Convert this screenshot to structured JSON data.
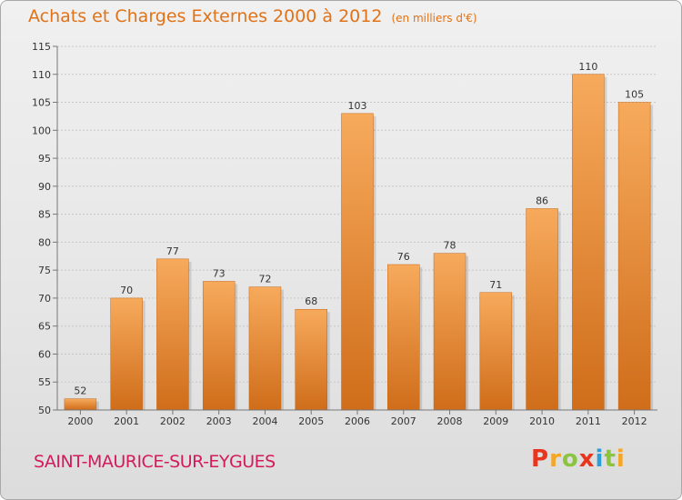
{
  "header": {
    "title": "Achats et Charges Externes 2000 à 2012",
    "unit": "(en milliers d'€)"
  },
  "footer": {
    "commune": "SAINT-MAURICE-SUR-EYGUES",
    "logo_text": "Proxiti"
  },
  "colors": {
    "accent": "#e07319",
    "commune": "#d31b5c",
    "bar_light": "#f6a85a",
    "bar_dark": "#cf6f1c"
  },
  "chart_data": {
    "type": "bar",
    "title": "Achats et Charges Externes 2000 à 2012",
    "subtitle": "(en milliers d'€)",
    "categories": [
      "2000",
      "2001",
      "2002",
      "2003",
      "2004",
      "2005",
      "2006",
      "2007",
      "2008",
      "2009",
      "2010",
      "2011",
      "2012"
    ],
    "values": [
      52,
      70,
      77,
      73,
      72,
      68,
      103,
      76,
      78,
      71,
      86,
      110,
      105
    ],
    "ylim": [
      50,
      115
    ],
    "yticks": [
      50,
      55,
      60,
      65,
      70,
      75,
      80,
      85,
      90,
      95,
      100,
      105,
      110,
      115
    ],
    "grid": true,
    "xlabel": "",
    "ylabel": ""
  }
}
